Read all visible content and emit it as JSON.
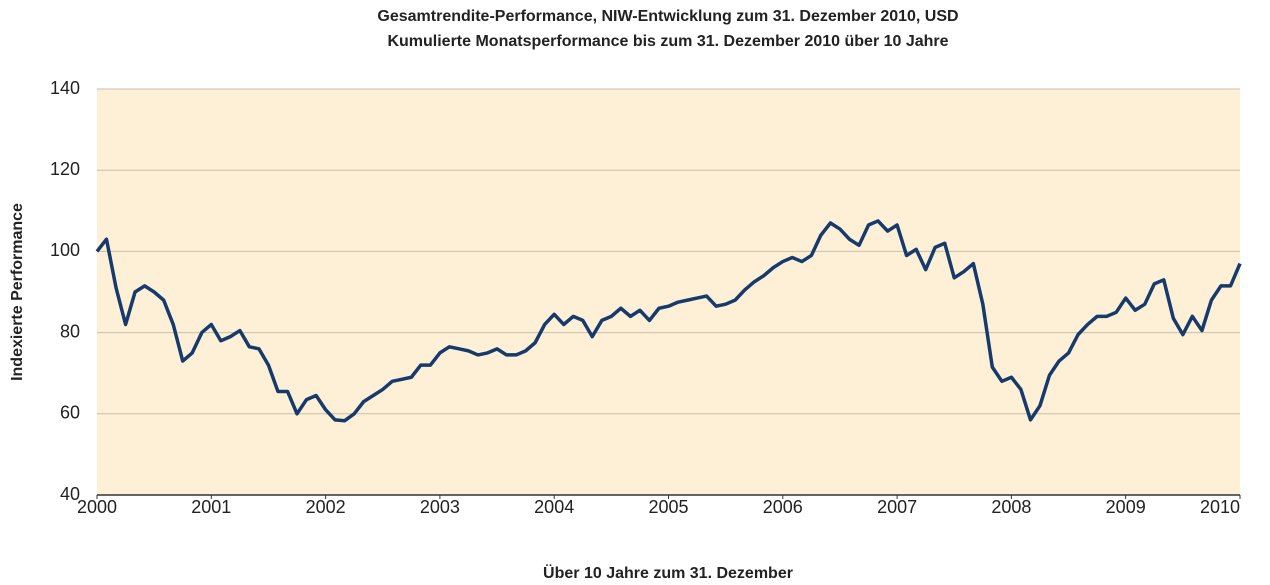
{
  "chart_data": {
    "type": "line",
    "title": "Gesamtrendite-Performance, NIW-Entwicklung zum 31. Dezember 2010, USD",
    "subtitle": "Kumulierte Monatsperformance bis zum 31. Dezember 2010 über 10 Jahre",
    "x_label": "Über 10 Jahre zum 31. Dezember",
    "y_label": "Indexierte Performance",
    "plot_background": "#fdf0d6",
    "grid": true,
    "xlim": [
      2000,
      2010
    ],
    "xticks": [
      2000,
      2001,
      2002,
      2003,
      2004,
      2005,
      2006,
      2007,
      2008,
      2009,
      2010
    ],
    "ylim": [
      40,
      140
    ],
    "yticks": [
      40,
      60,
      80,
      100,
      120,
      140
    ],
    "x": [
      2000,
      2000.083,
      2000.167,
      2000.25,
      2000.333,
      2000.417,
      2000.5,
      2000.583,
      2000.667,
      2000.75,
      2000.833,
      2000.917,
      2001,
      2001.083,
      2001.167,
      2001.25,
      2001.333,
      2001.417,
      2001.5,
      2001.583,
      2001.667,
      2001.75,
      2001.833,
      2001.917,
      2002,
      2002.083,
      2002.167,
      2002.25,
      2002.333,
      2002.417,
      2002.5,
      2002.583,
      2002.667,
      2002.75,
      2002.833,
      2002.917,
      2003,
      2003.083,
      2003.167,
      2003.25,
      2003.333,
      2003.417,
      2003.5,
      2003.583,
      2003.667,
      2003.75,
      2003.833,
      2003.917,
      2004,
      2004.083,
      2004.167,
      2004.25,
      2004.333,
      2004.417,
      2004.5,
      2004.583,
      2004.667,
      2004.75,
      2004.833,
      2004.917,
      2005,
      2005.083,
      2005.167,
      2005.25,
      2005.333,
      2005.417,
      2005.5,
      2005.583,
      2005.667,
      2005.75,
      2005.833,
      2005.917,
      2006,
      2006.083,
      2006.167,
      2006.25,
      2006.333,
      2006.417,
      2006.5,
      2006.583,
      2006.667,
      2006.75,
      2006.833,
      2006.917,
      2007,
      2007.083,
      2007.167,
      2007.25,
      2007.333,
      2007.417,
      2007.5,
      2007.583,
      2007.667,
      2007.75,
      2007.833,
      2007.917,
      2008,
      2008.083,
      2008.167,
      2008.25,
      2008.333,
      2008.417,
      2008.5,
      2008.583,
      2008.667,
      2008.75,
      2008.833,
      2008.917,
      2009,
      2009.083,
      2009.167,
      2009.25,
      2009.333,
      2009.417,
      2009.5,
      2009.583,
      2009.667,
      2009.75,
      2009.833,
      2009.917,
      2010
    ],
    "series": [
      {
        "color": "#173a6d",
        "values": [
          100,
          103,
          91,
          82,
          90,
          91.5,
          90,
          88,
          82,
          73,
          75,
          80,
          82,
          78,
          79,
          80.5,
          76.5,
          76,
          72,
          65.5,
          65.5,
          60,
          63.5,
          64.5,
          61,
          58.5,
          58.3,
          60,
          63,
          64.5,
          66,
          68,
          68.5,
          69,
          72,
          72,
          75,
          76.5,
          76,
          75.5,
          74.5,
          75,
          76,
          74.5,
          74.5,
          75.5,
          77.5,
          82,
          84.5,
          82,
          84,
          83,
          79,
          83,
          84,
          86,
          84,
          85.5,
          83,
          86,
          86.5,
          87.5,
          88,
          88.5,
          89,
          86.5,
          87,
          88,
          90.5,
          92.5,
          94,
          96,
          97.5,
          98.5,
          97.5,
          99,
          104,
          107,
          105.5,
          103,
          101.5,
          106.5,
          107.5,
          105,
          106.5,
          99,
          100.5,
          95.5,
          101,
          102,
          93.5,
          95,
          97,
          87,
          71.5,
          68,
          69,
          66,
          58.5,
          62,
          69.5,
          73,
          75,
          79.5,
          82,
          84,
          84,
          85,
          88.5,
          85.5,
          87,
          92,
          93,
          83.5,
          79.5,
          84,
          80.5,
          88,
          91.5,
          91.5,
          97
        ]
      }
    ]
  }
}
